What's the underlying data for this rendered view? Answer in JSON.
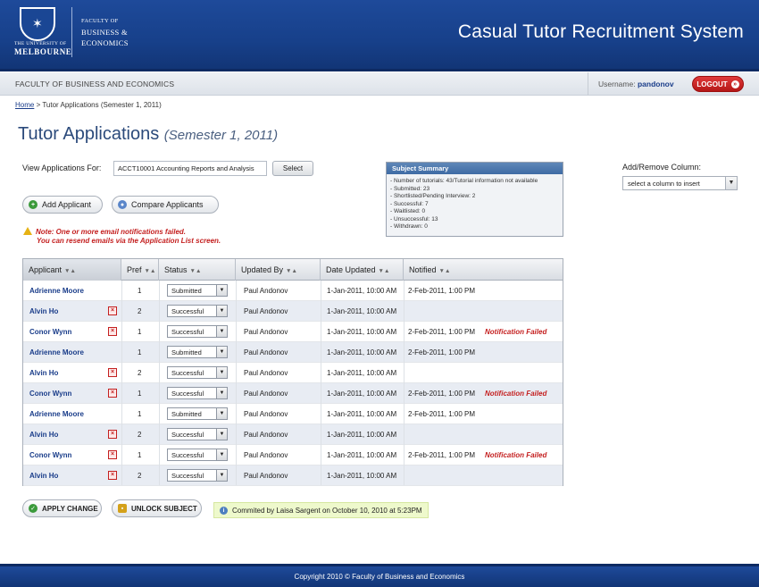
{
  "header": {
    "uni_small": "THE UNIVERSITY OF",
    "uni_big": "MELBOURNE",
    "faculty_1": "FACULTY OF",
    "faculty_2": "BUSINESS &",
    "faculty_3": "ECONOMICS",
    "system_title": "Casual Tutor Recruitment System"
  },
  "subbar": {
    "faculty": "FACULTY OF BUSINESS AND ECONOMICS",
    "username_label": "Username:",
    "username": "pandonov",
    "logout": "LOGOUT"
  },
  "breadcrumb": {
    "home": "Home",
    "sep": " > ",
    "current": "Tutor Applications (Semester 1, 2011)"
  },
  "page": {
    "title": "Tutor Applications",
    "subtitle": "(Semester 1, 2011)"
  },
  "view": {
    "label": "View Applications For:",
    "value": "ACCT10001 Accounting Reports and Analysis",
    "select_button": "Select"
  },
  "actions": {
    "add_applicant": "Add Applicant",
    "compare_applicants": "Compare Applicants"
  },
  "note": {
    "line1": "Note: One or more email notifications failed.",
    "line2": "You can resend emails via the Application List screen."
  },
  "summary": {
    "title": "Subject Summary",
    "items": [
      "- Number of tutorials: 43/Tutorial information not available",
      "- Submitted: 23",
      "- Shortlisted/Pending Interview: 2",
      "- Successful: 7",
      "- Waitlisted: 0",
      "- Unsuccessful: 13",
      "- Withdrawn: 0"
    ]
  },
  "columns_picker": {
    "label": "Add/Remove Column:",
    "placeholder": "select a column to insert"
  },
  "table": {
    "headers": [
      "Applicant",
      "Pref",
      "Status",
      "Updated By",
      "Date Updated",
      "Notified"
    ],
    "rows": [
      {
        "name": "Adrienne Moore",
        "del": false,
        "pref": "1",
        "status": "Submitted",
        "updated_by": "Paul Andonov",
        "date": "1-Jan-2011, 10:00 AM",
        "notified": "2-Feb-2011, 1:00 PM",
        "failed": ""
      },
      {
        "name": "Alvin Ho",
        "del": true,
        "pref": "2",
        "status": "Successful",
        "updated_by": "Paul Andonov",
        "date": "1-Jan-2011, 10:00 AM",
        "notified": "",
        "failed": ""
      },
      {
        "name": "Conor Wynn",
        "del": true,
        "pref": "1",
        "status": "Successful",
        "updated_by": "Paul Andonov",
        "date": "1-Jan-2011, 10:00 AM",
        "notified": "2-Feb-2011, 1:00 PM",
        "failed": "Notification Failed"
      },
      {
        "name": "Adrienne Moore",
        "del": false,
        "pref": "1",
        "status": "Submitted",
        "updated_by": "Paul Andonov",
        "date": "1-Jan-2011, 10:00 AM",
        "notified": "2-Feb-2011, 1:00 PM",
        "failed": ""
      },
      {
        "name": "Alvin Ho",
        "del": true,
        "pref": "2",
        "status": "Successful",
        "updated_by": "Paul Andonov",
        "date": "1-Jan-2011, 10:00 AM",
        "notified": "",
        "failed": ""
      },
      {
        "name": "Conor Wynn",
        "del": true,
        "pref": "1",
        "status": "Successful",
        "updated_by": "Paul Andonov",
        "date": "1-Jan-2011, 10:00 AM",
        "notified": "2-Feb-2011, 1:00 PM",
        "failed": "Notification Failed"
      },
      {
        "name": "Adrienne Moore",
        "del": false,
        "pref": "1",
        "status": "Submitted",
        "updated_by": "Paul Andonov",
        "date": "1-Jan-2011, 10:00 AM",
        "notified": "2-Feb-2011, 1:00 PM",
        "failed": ""
      },
      {
        "name": "Alvin Ho",
        "del": true,
        "pref": "2",
        "status": "Successful",
        "updated_by": "Paul Andonov",
        "date": "1-Jan-2011, 10:00 AM",
        "notified": "",
        "failed": ""
      },
      {
        "name": "Conor Wynn",
        "del": true,
        "pref": "1",
        "status": "Successful",
        "updated_by": "Paul Andonov",
        "date": "1-Jan-2011, 10:00 AM",
        "notified": "2-Feb-2011, 1:00 PM",
        "failed": "Notification Failed"
      },
      {
        "name": "Alvin Ho",
        "del": true,
        "pref": "2",
        "status": "Successful",
        "updated_by": "Paul Andonov",
        "date": "1-Jan-2011, 10:00 AM",
        "notified": "",
        "failed": ""
      }
    ]
  },
  "bottom": {
    "apply_change": "APPLY CHANGE",
    "unlock_subject": "UNLOCK SUBJECT",
    "commit_text": "Commited by Laisa Sargent on October 10, 2010 at 5:23PM"
  },
  "footer": {
    "copyright": "Copyright 2010 © Faculty of Business and Economics"
  },
  "icons": {
    "crest": "university-crest-icon",
    "logout": "arrow-right-circle-icon",
    "add": "plus-circle-icon",
    "compare": "user-icon",
    "warning": "warning-triangle-icon",
    "delete": "delete-x-icon",
    "apply": "check-circle-icon",
    "unlock": "lock-icon",
    "info": "info-icon"
  }
}
